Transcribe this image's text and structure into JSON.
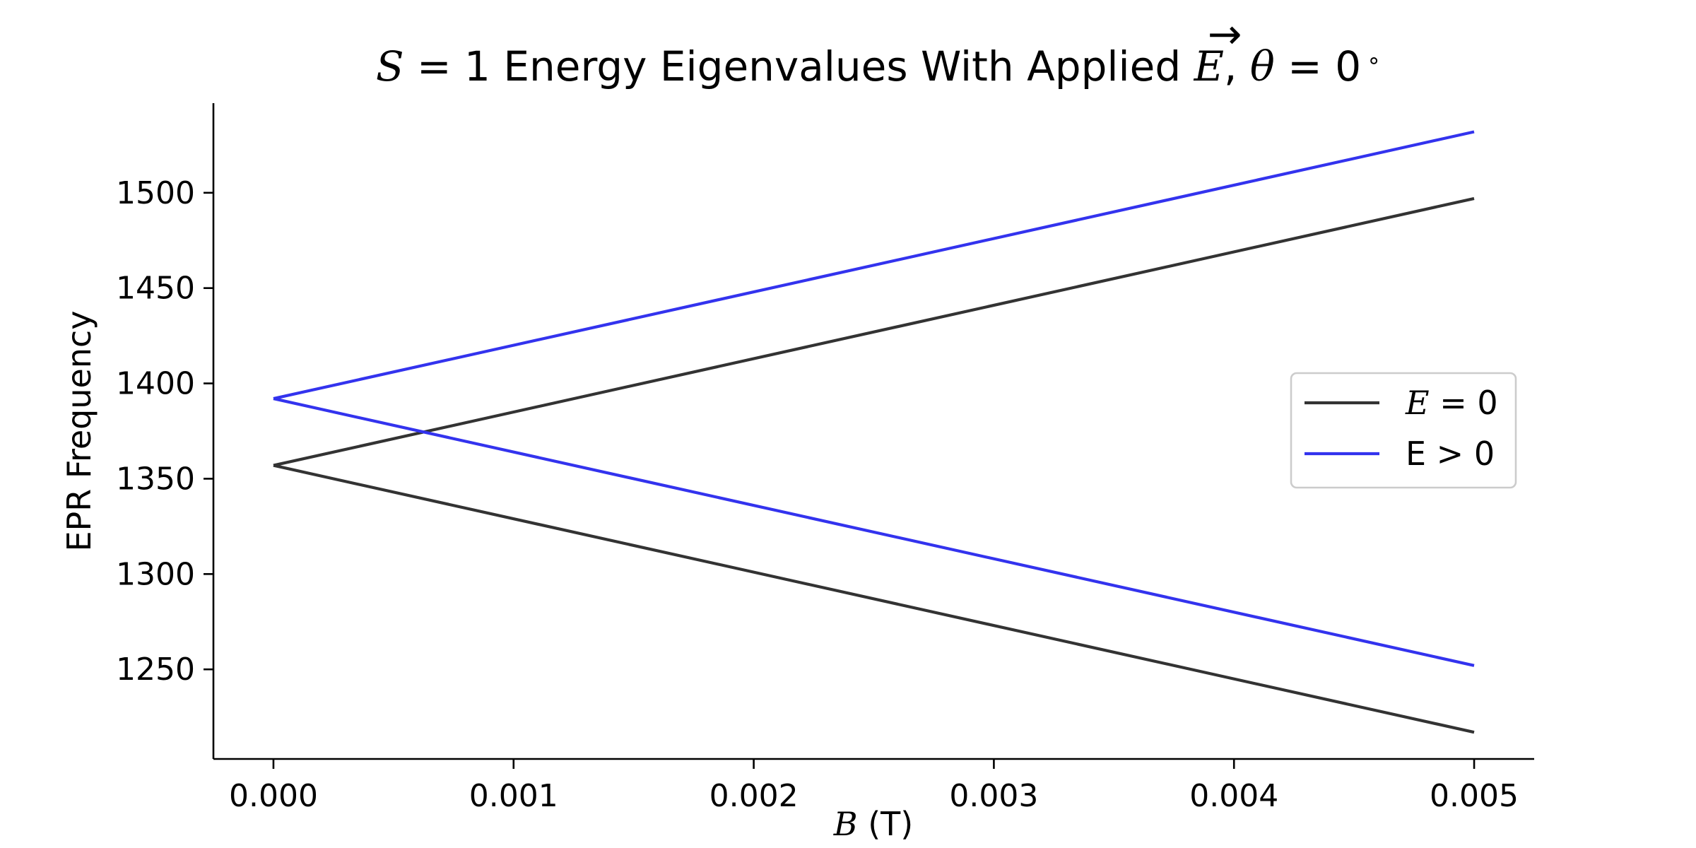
{
  "chart_data": {
    "type": "line",
    "title": {
      "prefix_var": "S",
      "prefix_rest": " = 1 Energy Eigenvalues With Applied ",
      "field_var": "E",
      "field_arrow": "→",
      "sep": ", ",
      "angle_var": "θ",
      "angle_rest": " = 0",
      "degree": "∘"
    },
    "xlabel": {
      "var": "B",
      "unit": " (T)"
    },
    "ylabel": "EPR Frequency",
    "xlim": [
      -0.00025,
      0.00525
    ],
    "ylim": [
      1203,
      1547
    ],
    "xticks": [
      0.0,
      0.001,
      0.002,
      0.003,
      0.004,
      0.005
    ],
    "xtick_labels": [
      "0.000",
      "0.001",
      "0.002",
      "0.003",
      "0.004",
      "0.005"
    ],
    "yticks": [
      1250,
      1300,
      1350,
      1400,
      1450,
      1500
    ],
    "ytick_labels": [
      "1250",
      "1300",
      "1350",
      "1400",
      "1450",
      "1500"
    ],
    "grid": false,
    "legend_position": "center-right",
    "series": [
      {
        "name": "E = 0",
        "legend_var": "E",
        "legend_rest": " = 0",
        "color": "#333333",
        "lines": [
          {
            "x": [
              0.0,
              0.005
            ],
            "y": [
              1357,
              1497
            ]
          },
          {
            "x": [
              0.0,
              0.005
            ],
            "y": [
              1357,
              1217
            ]
          }
        ]
      },
      {
        "name": "E > 0",
        "legend_label": "E > 0",
        "color": "#3333ee",
        "lines": [
          {
            "x": [
              0.0,
              0.005
            ],
            "y": [
              1392,
              1532
            ]
          },
          {
            "x": [
              0.0,
              0.005
            ],
            "y": [
              1392,
              1252
            ]
          }
        ]
      }
    ]
  }
}
